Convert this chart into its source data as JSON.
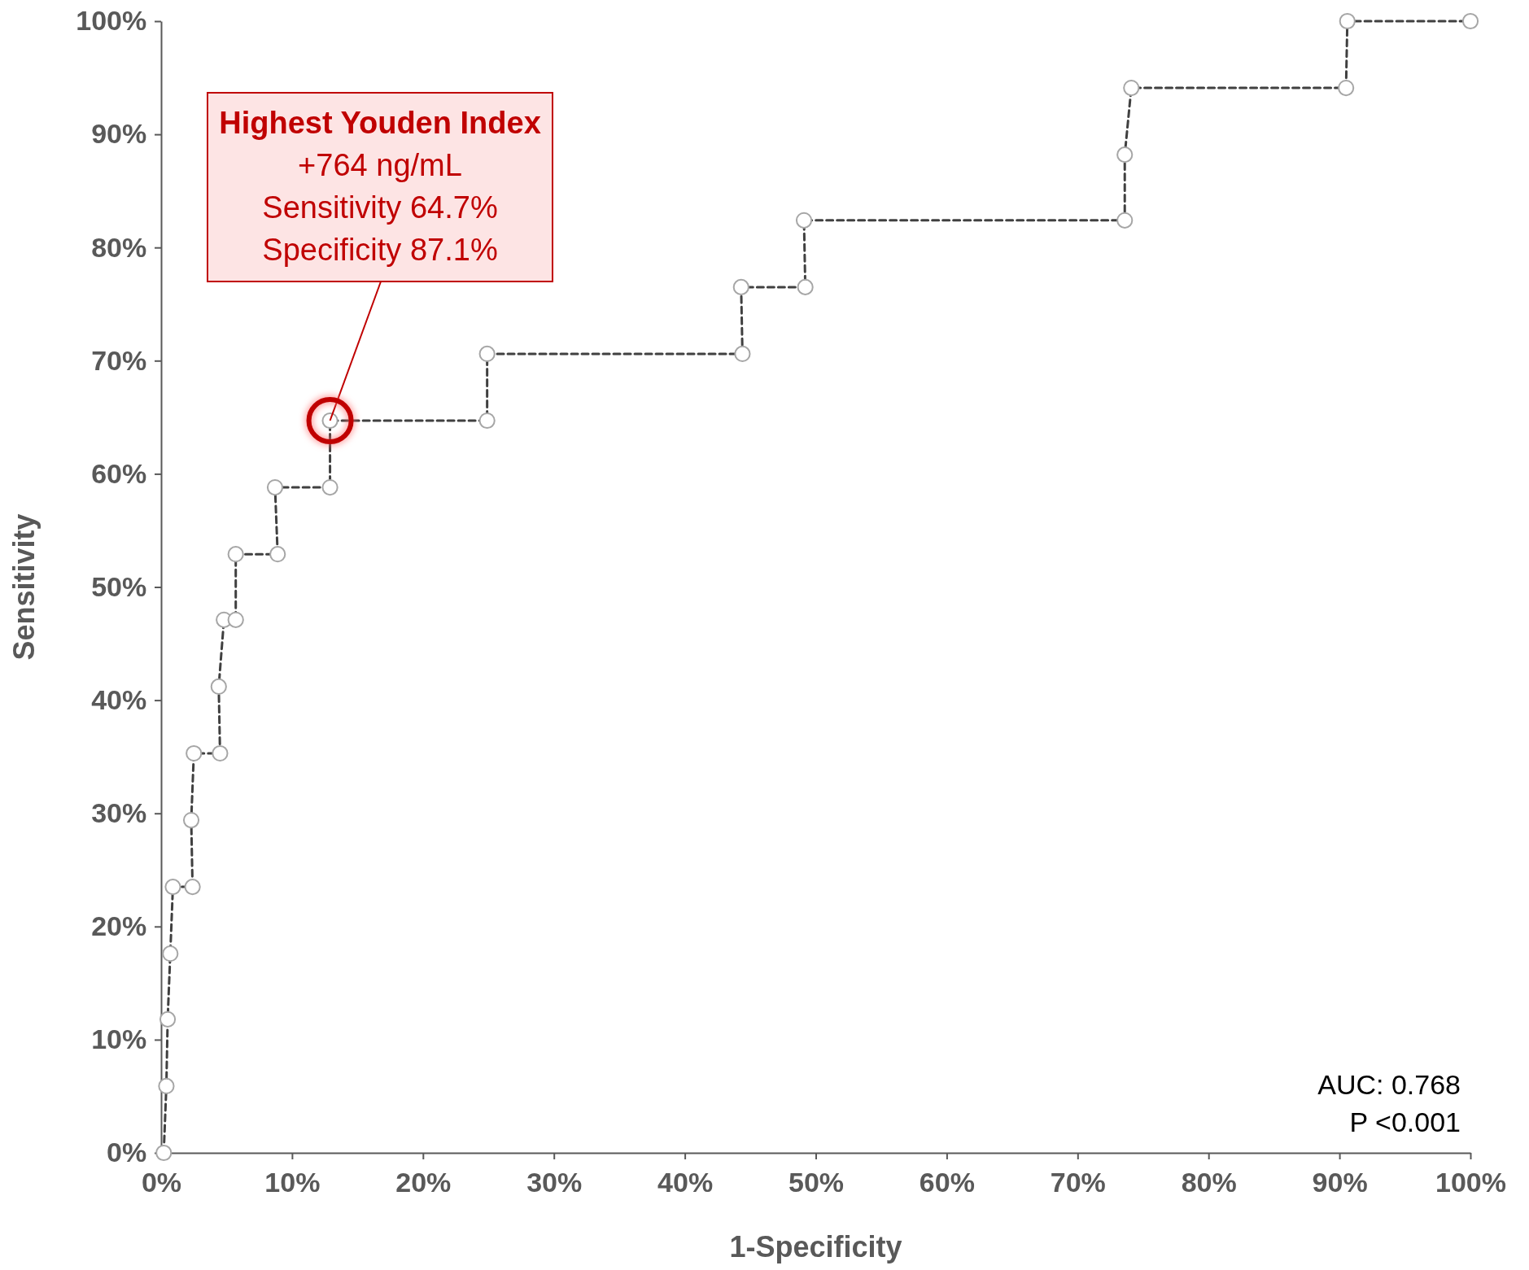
{
  "chart_data": {
    "type": "step",
    "xlabel": "1-Specificity",
    "ylabel": "Sensitivity",
    "xlim": [
      0,
      100
    ],
    "ylim": [
      0,
      100
    ],
    "xticks": [
      {
        "value": 0,
        "label": "0%"
      },
      {
        "value": 10,
        "label": "10%"
      },
      {
        "value": 20,
        "label": "20%"
      },
      {
        "value": 30,
        "label": "30%"
      },
      {
        "value": 40,
        "label": "40%"
      },
      {
        "value": 50,
        "label": "50%"
      },
      {
        "value": 60,
        "label": "60%"
      },
      {
        "value": 70,
        "label": "70%"
      },
      {
        "value": 80,
        "label": "80%"
      },
      {
        "value": 90,
        "label": "90%"
      },
      {
        "value": 100,
        "label": "100%"
      }
    ],
    "yticks": [
      {
        "value": 0,
        "label": "0%"
      },
      {
        "value": 10,
        "label": "10%"
      },
      {
        "value": 20,
        "label": "20%"
      },
      {
        "value": 30,
        "label": "30%"
      },
      {
        "value": 40,
        "label": "40%"
      },
      {
        "value": 50,
        "label": "50%"
      },
      {
        "value": 60,
        "label": "60%"
      },
      {
        "value": 70,
        "label": "70%"
      },
      {
        "value": 80,
        "label": "80%"
      },
      {
        "value": 90,
        "label": "90%"
      },
      {
        "value": 100,
        "label": "100%"
      }
    ],
    "marker": "circle",
    "line_style": "dashed",
    "series": [
      {
        "color": "#a6a6a6",
        "x": [
          0.2,
          0.4,
          0.5,
          0.7,
          0.9,
          2.4,
          2.3,
          2.5,
          4.5,
          4.4,
          4.8,
          5.7,
          5.7,
          8.9,
          8.7,
          12.9,
          12.9,
          24.9,
          24.9,
          44.4,
          44.3,
          49.2,
          49.1,
          73.6,
          73.6,
          74.1,
          90.5,
          90.6,
          100
        ],
        "values": [
          0,
          5.9,
          11.8,
          17.6,
          23.5,
          23.5,
          29.4,
          35.3,
          35.3,
          41.2,
          47.1,
          47.1,
          52.9,
          52.9,
          58.8,
          58.8,
          64.7,
          64.7,
          70.6,
          70.6,
          76.5,
          76.5,
          82.4,
          82.4,
          88.2,
          94.1,
          94.1,
          100,
          100
        ]
      }
    ],
    "annotations": [
      {
        "text": "Highest Youden Index\n+764 ng/mL\nSensitivity 64.7%\nSpecificity 87.1%",
        "x": 12.9,
        "y": 64.7
      },
      "AUC: 0.768\nP <0.001"
    ]
  }
}
